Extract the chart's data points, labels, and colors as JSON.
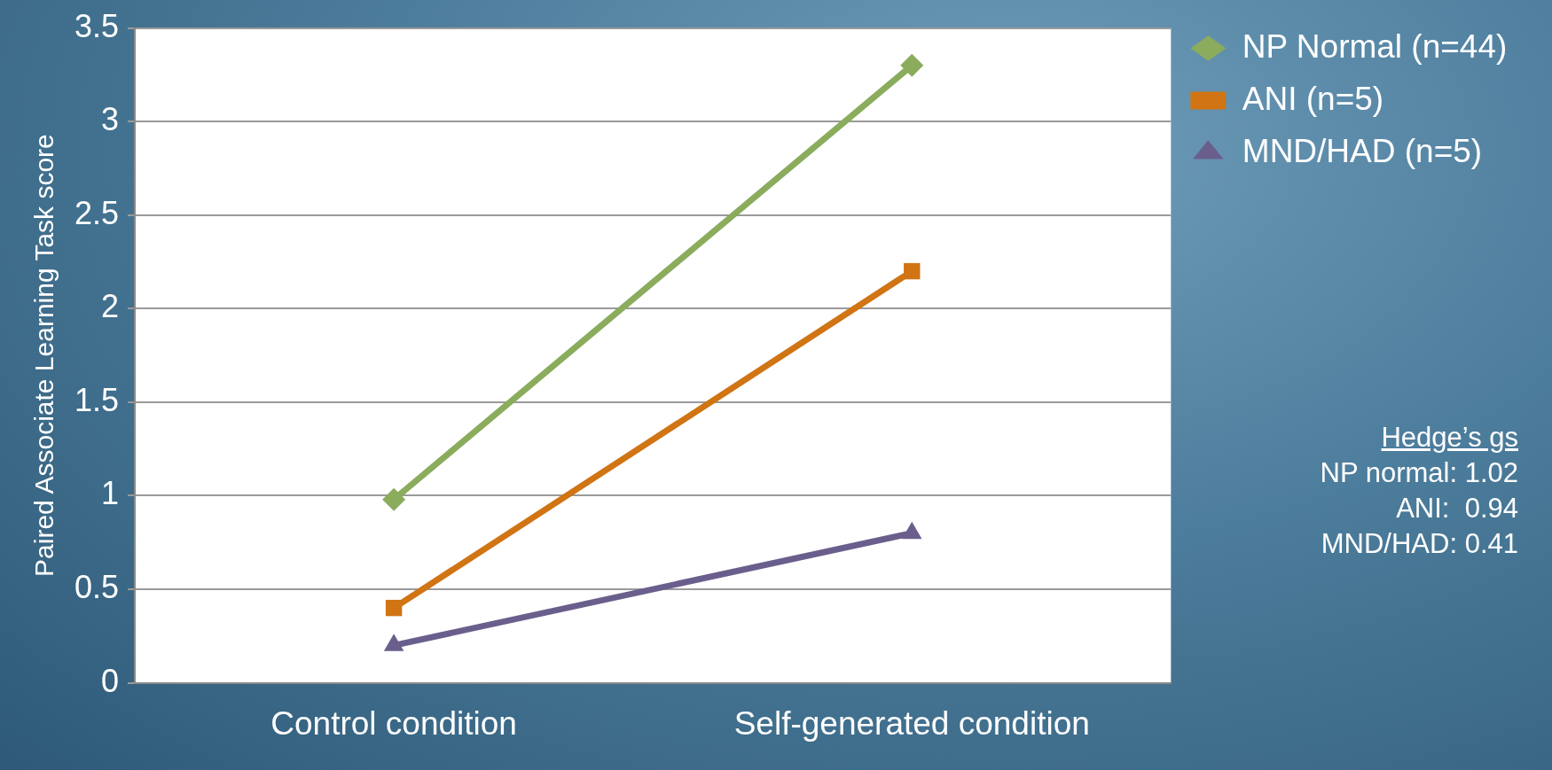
{
  "chart_data": {
    "type": "line",
    "ylabel": "Paired Associate Learning Task score",
    "categories": [
      "Control condition",
      "Self-generated condition"
    ],
    "series": [
      {
        "name": "NP Normal (n=44)",
        "color": "#8aac5c",
        "values": [
          0.98,
          3.3
        ],
        "marker": "diamond"
      },
      {
        "name": "ANI (n=5)",
        "color": "#d07414",
        "values": [
          0.4,
          2.2
        ],
        "marker": "square"
      },
      {
        "name": "MND/HAD (n=5)",
        "color": "#6a5f8c",
        "values": [
          0.2,
          0.8
        ],
        "marker": "triangle"
      }
    ],
    "ylim": [
      0,
      3.5
    ],
    "yticks": [
      0,
      0.5,
      1,
      1.5,
      2,
      2.5,
      3,
      3.5
    ],
    "grid": "y",
    "legend": "top right",
    "line_style": "solid",
    "annotations": [
      "Hedge’s gs",
      "NP normal: 1.02",
      "ANI:  0.94",
      "MND/HAD: 0.41"
    ]
  }
}
